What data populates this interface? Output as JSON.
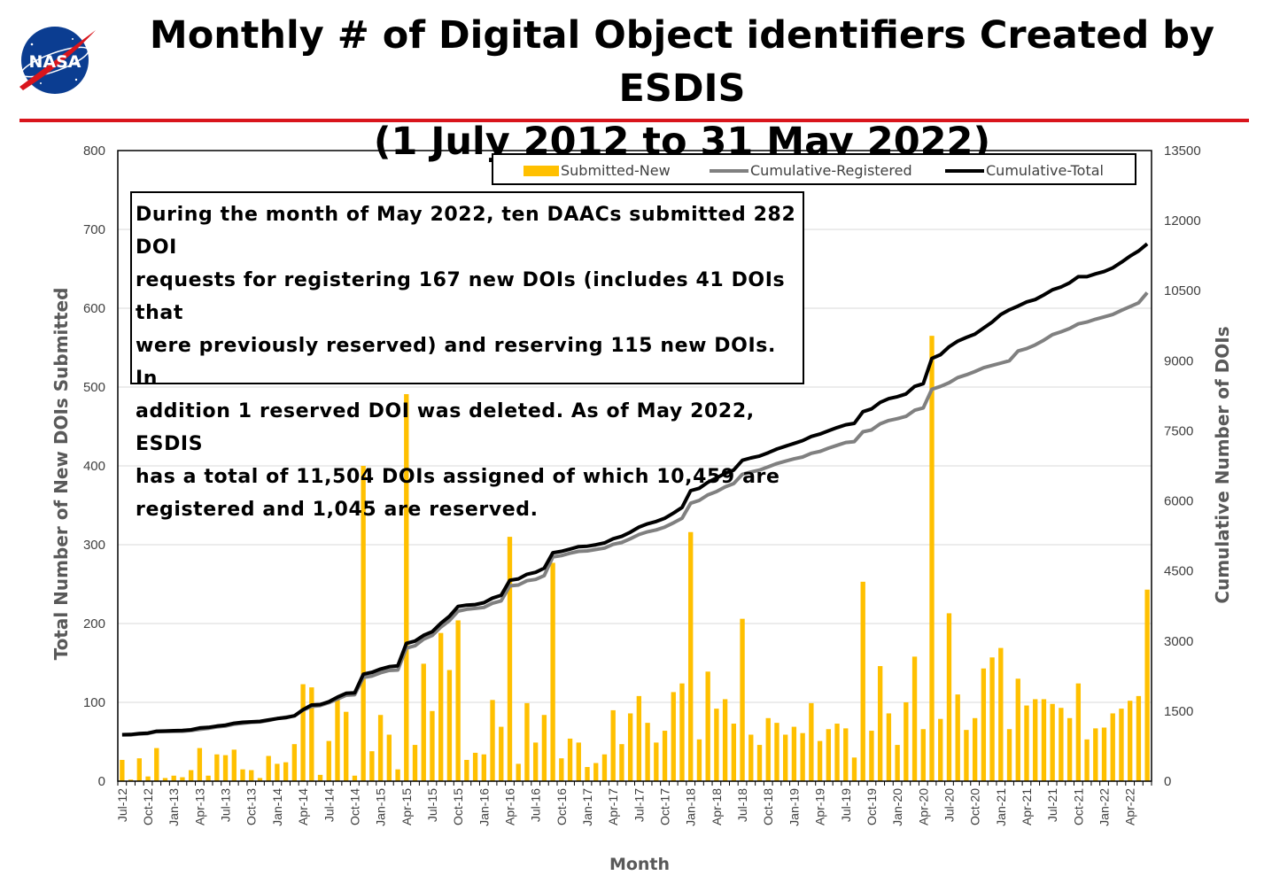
{
  "title_line1": "Monthly # of Digital Object identifiers Created by ESDIS",
  "title_line2": "(1 July 2012 to 31 May 2022)",
  "logo_text": "NASA",
  "info_lines": [
    "During the month of May 2022, ten DAACs submitted 282 DOI",
    "requests for registering 167 new DOIs (includes 41 DOIs that",
    "were previously reserved) and reserving 115 new DOIs. In",
    "addition 1 reserved DOI was deleted. As of May 2022, ESDIS",
    "has a total of 11,504 DOIs assigned of which 10,459 are",
    "registered and 1,045 are reserved."
  ],
  "colors": {
    "bar": "#ffc000",
    "registered": "#808080",
    "total": "#000000",
    "accent_red": "#d9151c"
  },
  "chart_data": {
    "type": "bar+line",
    "xlabel": "Month",
    "ylabel_left": "Total Number of New DOIs Submitted",
    "ylabel_right": "Cumulative Number of DOIs",
    "ylim_left": [
      0,
      800
    ],
    "ylim_right": [
      0,
      13500
    ],
    "yticks_left": [
      0,
      100,
      200,
      300,
      400,
      500,
      600,
      700,
      800
    ],
    "yticks_right": [
      0,
      1500,
      3000,
      4500,
      6000,
      7500,
      9000,
      10500,
      12000,
      13500
    ],
    "grid": true,
    "legend_position": "top-right",
    "x_start": "2012-07",
    "x_end": "2022-05",
    "x_tick_labels": [
      "Jul-12",
      "Oct-12",
      "Jan-13",
      "Apr-13",
      "Jul-13",
      "Oct-13",
      "Jan-14",
      "Apr-14",
      "Jul-14",
      "Oct-14",
      "Jan-15",
      "Apr-15",
      "Jul-15",
      "Oct-15",
      "Jan-16",
      "Apr-16",
      "Jul-16",
      "Oct-16",
      "Jan-17",
      "Apr-17",
      "Jul-17",
      "Oct-17",
      "Jan-18",
      "Apr-18",
      "Jul-18",
      "Oct-18",
      "Jan-19",
      "Apr-19",
      "Jul-19",
      "Oct-19",
      "Jan-20",
      "Apr-20",
      "Jul-20",
      "Oct-20",
      "Jan-21",
      "Apr-21",
      "Jul-21",
      "Oct-21",
      "Jan-22",
      "Apr-22"
    ],
    "series": [
      {
        "name": "Submitted-New",
        "axis": "left",
        "kind": "bar",
        "values": [
          27,
          2,
          29,
          6,
          42,
          4,
          7,
          5,
          14,
          42,
          7,
          34,
          33,
          40,
          15,
          14,
          4,
          32,
          22,
          24,
          47,
          123,
          119,
          8,
          51,
          103,
          88,
          7,
          400,
          38,
          84,
          59,
          15,
          491,
          46,
          149,
          89,
          188,
          141,
          204,
          27,
          36,
          34,
          103,
          69,
          310,
          22,
          99,
          49,
          84,
          277,
          29,
          54,
          49,
          18,
          23,
          34,
          90,
          47,
          86,
          108,
          74,
          49,
          64,
          113,
          124,
          316,
          53,
          139,
          92,
          104,
          73,
          206,
          59,
          46,
          80,
          74,
          59,
          69,
          61,
          99,
          51,
          66,
          73,
          67,
          30,
          253,
          64,
          146,
          86,
          46,
          100,
          158,
          66,
          565,
          79,
          213,
          110,
          65,
          80,
          143,
          157,
          169,
          66,
          130,
          96,
          104,
          104,
          98,
          93,
          80,
          124,
          53,
          67,
          68,
          86,
          92,
          102,
          108,
          243
        ]
      },
      {
        "name": "Cumulative-Registered",
        "axis": "right",
        "kind": "line",
        "values": [
          990,
          992,
          1010,
          1020,
          1060,
          1064,
          1068,
          1070,
          1084,
          1110,
          1130,
          1160,
          1180,
          1220,
          1240,
          1260,
          1270,
          1300,
          1340,
          1370,
          1400,
          1520,
          1600,
          1620,
          1680,
          1760,
          1840,
          1850,
          2220,
          2250,
          2320,
          2370,
          2380,
          2850,
          2900,
          3040,
          3120,
          3300,
          3440,
          3640,
          3680,
          3700,
          3720,
          3810,
          3860,
          4180,
          4200,
          4290,
          4320,
          4400,
          4800,
          4830,
          4880,
          4920,
          4930,
          4960,
          4990,
          5070,
          5110,
          5190,
          5280,
          5340,
          5380,
          5440,
          5530,
          5630,
          5950,
          6010,
          6130,
          6200,
          6300,
          6370,
          6570,
          6620,
          6660,
          6730,
          6800,
          6850,
          6900,
          6940,
          7020,
          7060,
          7130,
          7190,
          7250,
          7270,
          7480,
          7520,
          7650,
          7720,
          7760,
          7810,
          7940,
          7990,
          8390,
          8450,
          8530,
          8640,
          8700,
          8770,
          8850,
          8900,
          8950,
          9000,
          9210,
          9260,
          9340,
          9440,
          9560,
          9620,
          9690,
          9790,
          9830,
          9890,
          9940,
          9990,
          10080,
          10160,
          10240,
          10459
        ]
      },
      {
        "name": "Cumulative-Total",
        "axis": "right",
        "kind": "line",
        "values": [
          995,
          1000,
          1020,
          1030,
          1070,
          1074,
          1080,
          1085,
          1100,
          1140,
          1150,
          1180,
          1200,
          1240,
          1260,
          1270,
          1280,
          1310,
          1340,
          1360,
          1400,
          1530,
          1630,
          1640,
          1700,
          1800,
          1880,
          1890,
          2290,
          2330,
          2400,
          2450,
          2470,
          2950,
          3000,
          3120,
          3200,
          3380,
          3530,
          3740,
          3770,
          3780,
          3820,
          3920,
          3980,
          4300,
          4330,
          4430,
          4470,
          4560,
          4890,
          4920,
          4970,
          5020,
          5030,
          5060,
          5100,
          5190,
          5240,
          5330,
          5440,
          5510,
          5560,
          5630,
          5740,
          5860,
          6220,
          6270,
          6400,
          6490,
          6590,
          6660,
          6870,
          6920,
          6960,
          7030,
          7110,
          7170,
          7230,
          7290,
          7380,
          7430,
          7500,
          7570,
          7630,
          7660,
          7910,
          7970,
          8110,
          8190,
          8230,
          8290,
          8450,
          8510,
          9050,
          9130,
          9300,
          9420,
          9500,
          9570,
          9700,
          9830,
          9990,
          10090,
          10170,
          10260,
          10310,
          10410,
          10520,
          10580,
          10670,
          10800,
          10800,
          10860,
          10910,
          10990,
          11110,
          11240,
          11350,
          11504
        ]
      }
    ]
  }
}
